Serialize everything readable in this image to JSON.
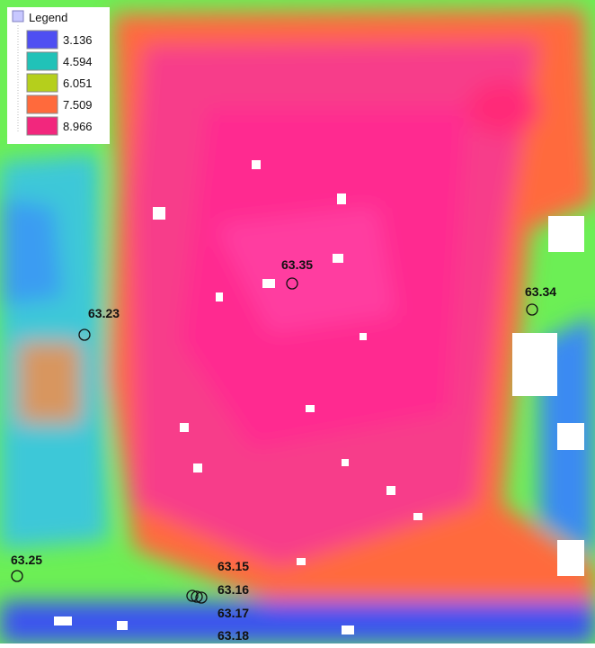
{
  "legend": {
    "title": "Legend",
    "items": [
      {
        "label": "3.136",
        "color": "#4f4ff2"
      },
      {
        "label": "4.594",
        "color": "#21c2b8"
      },
      {
        "label": "6.051",
        "color": "#b5cf1c"
      },
      {
        "label": "7.509",
        "color": "#ff6a3c"
      },
      {
        "label": "8.966",
        "color": "#f2277d"
      }
    ]
  },
  "points": [
    {
      "label": "63.35"
    },
    {
      "label": "63.23"
    },
    {
      "label": "63.34"
    },
    {
      "label": "63.25"
    },
    {
      "label": "63.15"
    },
    {
      "label": "63.16"
    },
    {
      "label": "63.17"
    },
    {
      "label": "63.18"
    }
  ]
}
